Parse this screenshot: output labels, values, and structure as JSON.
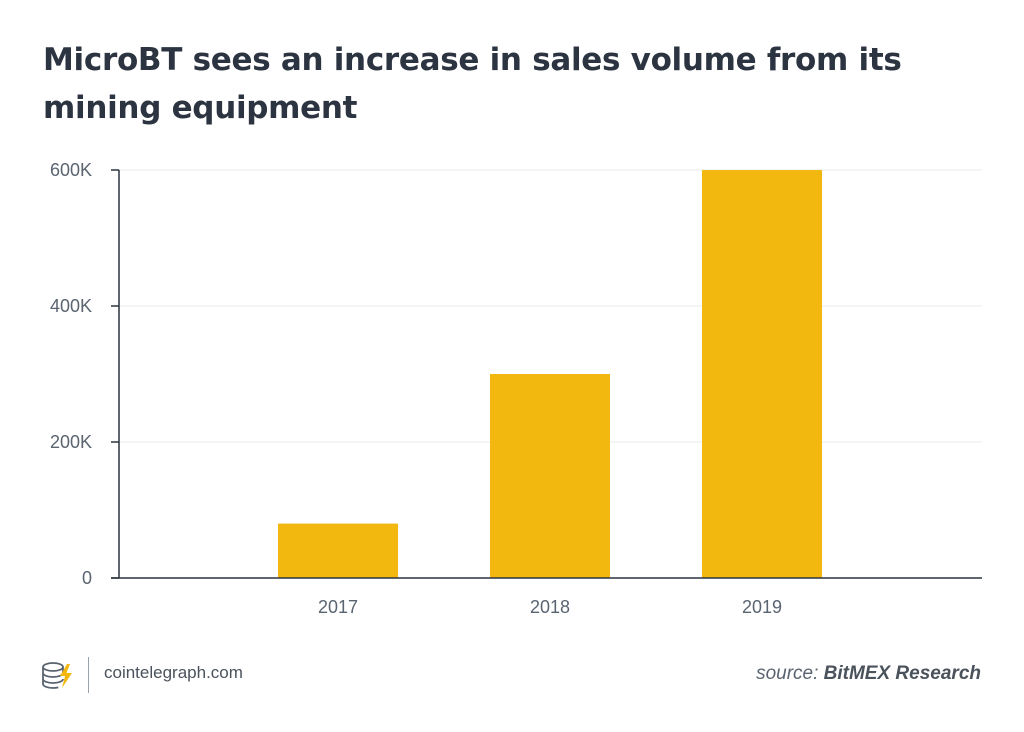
{
  "chart_data": {
    "type": "bar",
    "title": "MicroBT sees an increase in sales volume from its mining equipment",
    "categories": [
      "2017",
      "2018",
      "2019"
    ],
    "values": [
      80000,
      300000,
      600000
    ],
    "ylim": [
      0,
      600000
    ],
    "yticks": [
      0,
      200000,
      400000,
      600000
    ],
    "ytick_labels": [
      "0",
      "200K",
      "400K",
      "600K"
    ],
    "xlabel": "",
    "ylabel": "",
    "grid": true,
    "bar_color": "#f2b80f",
    "grid_color": "#e6e8eb",
    "axis_color": "#2b3440"
  },
  "footer": {
    "site": "cointelegraph.com",
    "source_prefix": "source:",
    "source_name": "BitMEX Research",
    "logo_icon": "coin-stack-lightning-icon",
    "accent_color": "#f2b80f"
  }
}
